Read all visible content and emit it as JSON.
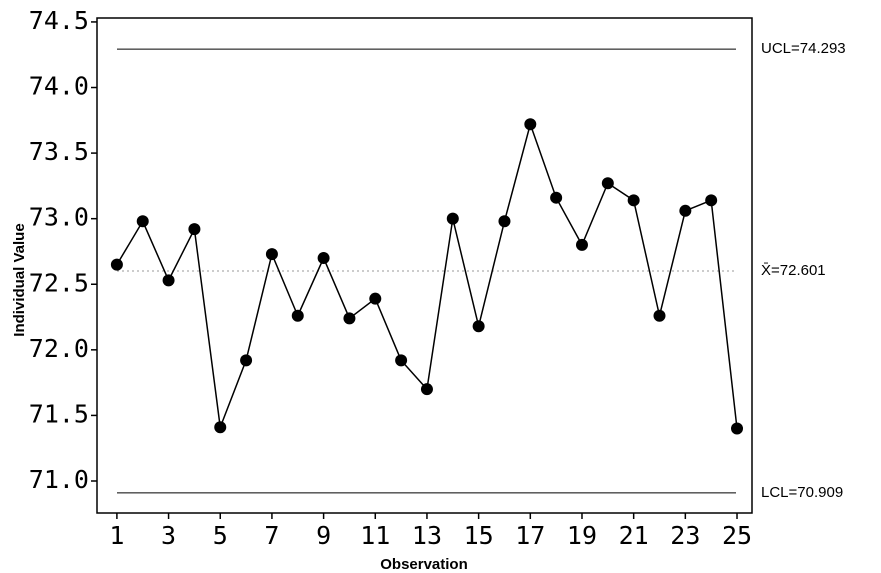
{
  "chart_data": {
    "type": "line",
    "x_label": "Observation",
    "y_label": "Individual Value",
    "x": [
      1,
      2,
      3,
      4,
      5,
      6,
      7,
      8,
      9,
      10,
      11,
      12,
      13,
      14,
      15,
      16,
      17,
      18,
      19,
      20,
      21,
      22,
      23,
      24,
      25
    ],
    "series": [
      {
        "color": "#000000",
        "values": [
          72.65,
          72.98,
          72.53,
          72.92,
          71.41,
          71.92,
          72.73,
          72.26,
          72.7,
          72.24,
          72.39,
          71.92,
          71.7,
          73.0,
          72.18,
          72.98,
          73.72,
          73.16,
          72.8,
          73.27,
          73.14,
          72.26,
          73.06,
          73.14,
          71.4
        ]
      }
    ],
    "control_lines": [
      {
        "label": "UCL=74.293",
        "value": 74.293,
        "style": "solid"
      },
      {
        "label": "X̄=72.601",
        "value": 72.601,
        "style": "dashed"
      },
      {
        "label": "LCL=70.909",
        "value": 70.909,
        "style": "solid"
      }
    ],
    "xlim": [
      0.23,
      25.58
    ],
    "ylim": [
      70.756,
      74.53
    ],
    "xticks": [
      1,
      3,
      5,
      7,
      9,
      11,
      13,
      15,
      17,
      19,
      21,
      23,
      25
    ],
    "yticks": [
      {
        "value": 71,
        "label": "71.0"
      },
      71.5,
      {
        "value": 72,
        "label": "72.0"
      },
      72.5,
      {
        "value": 73,
        "label": "73.0"
      },
      73.5,
      {
        "value": 74,
        "label": "74.0"
      },
      74.5
    ]
  }
}
